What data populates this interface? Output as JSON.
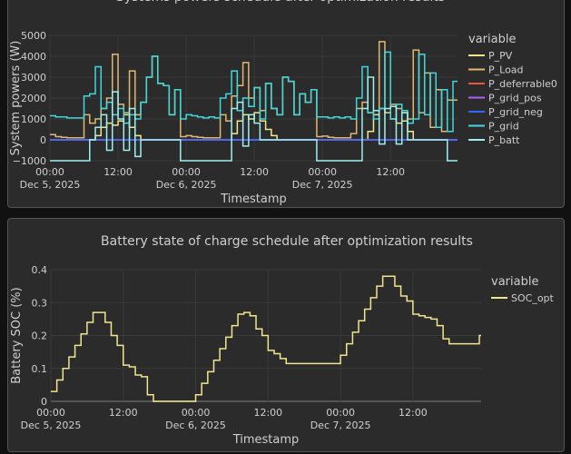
{
  "chart_data": [
    {
      "type": "line",
      "title": "Systems powers schedule after optimization results",
      "xlabel": "Timestamp",
      "ylabel": "System powers (W)",
      "legend_title": "variable",
      "legend_position": "right",
      "grid": true,
      "line_shape": "step",
      "x_start": "2025-12-05 00:00",
      "x_step_hours": 1,
      "xlim_hours": [
        0,
        71.8
      ],
      "ylim": [
        -1000,
        5000
      ],
      "yticks": [
        "−1000",
        "0",
        "1000",
        "2000",
        "3000",
        "4000",
        "5000"
      ],
      "xticks": [
        {
          "time": "00:00",
          "date": "Dec 5, 2025",
          "hour": 0
        },
        {
          "time": "12:00",
          "date": "",
          "hour": 12
        },
        {
          "time": "00:00",
          "date": "Dec 6, 2025",
          "hour": 24
        },
        {
          "time": "12:00",
          "date": "",
          "hour": 36
        },
        {
          "time": "00:00",
          "date": "Dec 7, 2025",
          "hour": 48
        },
        {
          "time": "12:00",
          "date": "",
          "hour": 60
        }
      ],
      "series": [
        {
          "name": "P_PV",
          "color": "#f0e68c",
          "values": [
            0,
            0,
            0,
            0,
            0,
            0,
            0,
            0,
            200,
            600,
            800,
            700,
            900,
            1200,
            600,
            200,
            0,
            0,
            0,
            0,
            0,
            0,
            0,
            0,
            0,
            0,
            0,
            0,
            0,
            0,
            0,
            0,
            300,
            900,
            1200,
            1000,
            1300,
            900,
            500,
            200,
            0,
            0,
            0,
            0,
            0,
            0,
            0,
            0,
            0,
            0,
            0,
            0,
            0,
            0,
            0,
            0,
            400,
            1200,
            1500,
            1300,
            1000,
            800,
            900,
            400,
            0,
            0,
            0,
            0,
            0,
            0,
            0,
            0
          ]
        },
        {
          "name": "P_Load",
          "color": "#e0b870",
          "values": [
            250,
            150,
            120,
            100,
            100,
            100,
            1200,
            800,
            1000,
            1500,
            2000,
            4100,
            1700,
            1300,
            3300,
            1200,
            1800,
            3000,
            4000,
            2700,
            2600,
            1200,
            2400,
            150,
            200,
            150,
            120,
            100,
            100,
            100,
            1200,
            900,
            2100,
            2600,
            3700,
            2000,
            2500,
            1400,
            2700,
            1500,
            1200,
            3000,
            2800,
            1200,
            2200,
            1800,
            2400,
            150,
            180,
            120,
            100,
            100,
            100,
            300,
            1500,
            1800,
            1300,
            1400,
            4700,
            1300,
            1700,
            1500,
            1300,
            1000,
            4300,
            1300,
            3200,
            600,
            2400,
            400,
            1900
          ]
        },
        {
          "name": "P_deferrable0",
          "color": "#ef553b",
          "values": [
            0,
            0,
            0,
            0,
            0,
            0,
            0,
            0,
            0,
            0,
            0,
            0,
            0,
            0,
            0,
            0,
            0,
            0,
            0,
            0,
            0,
            0,
            0,
            0,
            0,
            0,
            0,
            0,
            0,
            0,
            0,
            0,
            0,
            0,
            0,
            0,
            0,
            0,
            0,
            0,
            0,
            0,
            0,
            0,
            0,
            0,
            0,
            0,
            0,
            0,
            0,
            0,
            0,
            0,
            0,
            0,
            0,
            0,
            0,
            0,
            0,
            0,
            0,
            0,
            0,
            0,
            0,
            0,
            0,
            0,
            0,
            0
          ]
        },
        {
          "name": "P_grid_pos",
          "color": "#ab63fa",
          "values": [
            0,
            0,
            0,
            0,
            0,
            0,
            0,
            0,
            0,
            0,
            0,
            0,
            0,
            0,
            0,
            0,
            0,
            0,
            0,
            0,
            0,
            0,
            0,
            0,
            0,
            0,
            0,
            0,
            0,
            0,
            0,
            0,
            0,
            0,
            0,
            0,
            0,
            0,
            0,
            0,
            0,
            0,
            0,
            0,
            0,
            0,
            0,
            0,
            0,
            0,
            0,
            0,
            0,
            0,
            0,
            0,
            0,
            0,
            0,
            0,
            0,
            0,
            0,
            0,
            0,
            0,
            0,
            0,
            0,
            0,
            0,
            0
          ]
        },
        {
          "name": "P_grid_neg",
          "color": "#3366ff",
          "values": [
            0,
            0,
            0,
            0,
            0,
            0,
            0,
            0,
            0,
            0,
            0,
            0,
            0,
            0,
            0,
            0,
            0,
            0,
            0,
            0,
            0,
            0,
            0,
            0,
            0,
            0,
            0,
            0,
            0,
            0,
            0,
            0,
            0,
            0,
            0,
            0,
            0,
            0,
            0,
            0,
            0,
            0,
            0,
            0,
            0,
            0,
            0,
            0,
            0,
            0,
            0,
            0,
            0,
            0,
            0,
            0,
            0,
            0,
            0,
            0,
            0,
            0,
            0,
            0,
            0,
            0,
            0,
            0,
            0,
            0,
            0,
            0
          ]
        },
        {
          "name": "P_grid",
          "color": "#40d8dc",
          "values": [
            1150,
            1100,
            1100,
            1050,
            1050,
            1050,
            2100,
            2200,
            3500,
            1500,
            1800,
            1200,
            1500,
            800,
            1200,
            1000,
            1800,
            3000,
            4000,
            2700,
            2600,
            1200,
            2400,
            1000,
            1200,
            1150,
            1100,
            1050,
            1100,
            1050,
            2000,
            2200,
            3300,
            1400,
            2000,
            1600,
            2500,
            1000,
            2700,
            1500,
            1200,
            3000,
            2800,
            1200,
            2200,
            1800,
            2400,
            1100,
            1100,
            1050,
            1100,
            1050,
            1100,
            1000,
            2000,
            3500,
            1300,
            1000,
            1500,
            4200,
            1000,
            1700,
            1400,
            800,
            1000,
            4100,
            1200,
            3200,
            600,
            2400,
            400,
            2800
          ]
        },
        {
          "name": "P_batt",
          "color": "#9ef0f0",
          "values": [
            -1000,
            -1000,
            -1000,
            -1000,
            -1000,
            -1000,
            -1000,
            0,
            600,
            1200,
            -500,
            2300,
            1000,
            -500,
            1500,
            -800,
            0,
            0,
            0,
            0,
            0,
            0,
            0,
            -1000,
            -1000,
            -1000,
            -1000,
            -1000,
            -1000,
            -1000,
            -1000,
            -1000,
            1500,
            1800,
            -300,
            1200,
            800,
            0,
            0,
            0,
            0,
            0,
            0,
            0,
            0,
            0,
            0,
            -1000,
            -1000,
            -1000,
            -1000,
            -1000,
            -1000,
            -1000,
            -1000,
            1500,
            3000,
            1400,
            -200,
            1500,
            1600,
            -200,
            1300,
            0,
            0,
            0,
            0,
            0,
            0,
            0,
            -1000
          ]
        }
      ]
    },
    {
      "type": "line",
      "title": "Battery state of charge schedule after optimization results",
      "xlabel": "Timestamp",
      "ylabel": "Battery SOC (%)",
      "legend_title": "variable",
      "legend_position": "right",
      "grid": true,
      "line_shape": "step",
      "x_start": "2025-12-05 00:00",
      "x_step_hours": 1,
      "xlim_hours": [
        0,
        71.3
      ],
      "ylim": [
        0,
        0.4
      ],
      "yticks": [
        "0",
        "0.1",
        "0.2",
        "0.3",
        "0.4"
      ],
      "xticks": [
        {
          "time": "00:00",
          "date": "Dec 5, 2025",
          "hour": 0
        },
        {
          "time": "12:00",
          "date": "",
          "hour": 12
        },
        {
          "time": "00:00",
          "date": "Dec 6, 2025",
          "hour": 24
        },
        {
          "time": "12:00",
          "date": "",
          "hour": 36
        },
        {
          "time": "00:00",
          "date": "Dec 7, 2025",
          "hour": 48
        },
        {
          "time": "12:00",
          "date": "",
          "hour": 60
        }
      ],
      "series": [
        {
          "name": "SOC_opt",
          "color": "#f0e68c",
          "values": [
            0.03,
            0.065,
            0.1,
            0.135,
            0.17,
            0.205,
            0.24,
            0.27,
            0.27,
            0.24,
            0.2,
            0.17,
            0.11,
            0.105,
            0.08,
            0.075,
            0.02,
            0,
            0,
            0,
            0,
            0,
            0,
            0,
            0.02,
            0.055,
            0.09,
            0.125,
            0.16,
            0.195,
            0.23,
            0.265,
            0.27,
            0.26,
            0.22,
            0.2,
            0.155,
            0.145,
            0.13,
            0.115,
            0.115,
            0.115,
            0.115,
            0.115,
            0.115,
            0.115,
            0.115,
            0.115,
            0.14,
            0.175,
            0.21,
            0.245,
            0.28,
            0.315,
            0.35,
            0.38,
            0.38,
            0.35,
            0.32,
            0.305,
            0.265,
            0.26,
            0.255,
            0.25,
            0.23,
            0.19,
            0.175,
            0.175,
            0.175,
            0.175,
            0.175,
            0.2
          ]
        }
      ]
    }
  ]
}
